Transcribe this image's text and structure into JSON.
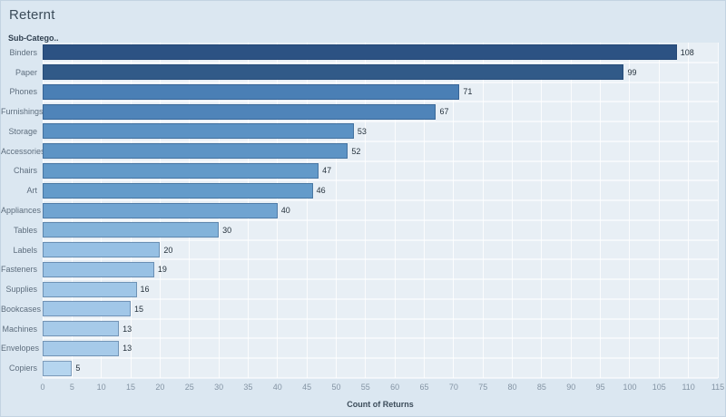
{
  "header": {
    "title": "Reternt"
  },
  "chart_data": {
    "type": "bar",
    "orientation": "horizontal",
    "title": "Reternt",
    "column_header": "Sub-Catego..",
    "xlabel": "Count of Returns",
    "xlim": [
      0,
      115
    ],
    "x_ticks": [
      0,
      5,
      10,
      15,
      20,
      25,
      30,
      35,
      40,
      45,
      50,
      55,
      60,
      65,
      70,
      75,
      80,
      85,
      90,
      95,
      100,
      105,
      110,
      115
    ],
    "categories": [
      "Binders",
      "Paper",
      "Phones",
      "Furnishings",
      "Storage",
      "Accessories",
      "Chairs",
      "Art",
      "Appliances",
      "Tables",
      "Labels",
      "Fasteners",
      "Supplies",
      "Bookcases",
      "Machines",
      "Envelopes",
      "Copiers"
    ],
    "values": [
      108,
      99,
      71,
      67,
      53,
      52,
      47,
      46,
      40,
      30,
      20,
      19,
      16,
      15,
      13,
      13,
      5
    ],
    "bar_colors": [
      "#2c5283",
      "#315a88",
      "#4a7fb5",
      "#4f84b9",
      "#5b92c4",
      "#5d94c5",
      "#639ac9",
      "#649bca",
      "#70a4d1",
      "#83b3da",
      "#96c0e4",
      "#98c1e4",
      "#9fc6e7",
      "#a1c7e8",
      "#a6cae9",
      "#a6cae9",
      "#b5d5ef"
    ],
    "grid": true,
    "legend": false,
    "background": "#dbe7f1",
    "plot_background": "#e8eff5"
  }
}
